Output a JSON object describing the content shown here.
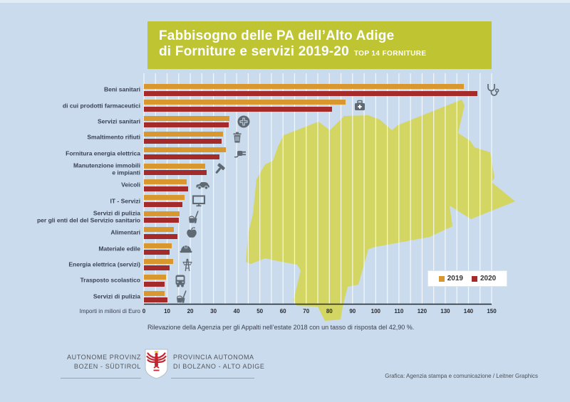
{
  "banner": {
    "title_line1": "Fabbisogno delle PA dell’Alto Adige",
    "title_line2": "di Forniture e servizi 2019-20",
    "title_suffix": "TOP 14 FORNITURE"
  },
  "chart_data": {
    "type": "bar",
    "orientation": "horizontal",
    "title": "Fabbisogno delle PA dell’Alto Adige di Forniture e servizi 2019-20 — Top 14 forniture",
    "unit_label": "Importi in milioni di Euro",
    "xlim": [
      0,
      150
    ],
    "tick_step": 10,
    "gridline_step": 5,
    "ticks": [
      0,
      10,
      20,
      30,
      40,
      50,
      60,
      70,
      80,
      90,
      100,
      110,
      120,
      130,
      140,
      150
    ],
    "legend_position": "bottom-right",
    "legend_entries": [
      "2019",
      "2020"
    ],
    "categories": [
      "Beni sanitari",
      "di cui prodotti farmaceutici",
      "Servizi sanitari",
      "Smaltimento rifiuti",
      "Fornitura energia elettrica",
      "Manutenzione immobili\ne impianti",
      "Veicoli",
      "IT - Servizi",
      "Servizi di pulizia\nper gli enti del del Servizio sanitario",
      "Alimentari",
      "Materiale edile",
      "Energia elettrica (servizi)",
      "Trasposto scolastico",
      "Servizi di pulizia"
    ],
    "icons": [
      "stethoscope",
      "first-aid-kit",
      "medical-cross",
      "trash-bin",
      "power-plug",
      "hammer",
      "car",
      "monitor",
      "mop-bucket",
      "apple",
      "hard-hat",
      "power-tower",
      "bus",
      "mop-bucket"
    ],
    "series": [
      {
        "name": "2019",
        "color": "#d9982f",
        "values": [
          138,
          87,
          37,
          34,
          35.5,
          26.5,
          18.5,
          17.5,
          15.5,
          13,
          12,
          12.5,
          9.5,
          9
        ]
      },
      {
        "name": "2020",
        "color": "#a52b2b",
        "values": [
          144,
          81,
          36.5,
          33.5,
          32.5,
          27,
          19,
          16.5,
          15,
          14.5,
          11,
          11,
          9,
          10
        ]
      }
    ]
  },
  "caption": "Rilevazione della Agenzia per gli Appalti nell’estate 2018 con un tasso di risposta del 42,90 %.",
  "footer": {
    "de_line1": "AUTONOME PROVINZ",
    "de_line2": "BOZEN - SÜDTIROL",
    "it_line1": "PROVINCIA AUTONOMA",
    "it_line2": "DI BOLZANO - ALTO ADIGE",
    "credit": "Grafica: Agenzia stampa e comunicazione / Leitner Graphics"
  },
  "colors": {
    "background": "#c9dbec",
    "banner": "#bec432",
    "map_silhouette": "#d4d65c",
    "bar_2019": "#d9982f",
    "bar_2020": "#a52b2b",
    "icon_gray": "#5f6973",
    "axis_line": "#26262b"
  }
}
